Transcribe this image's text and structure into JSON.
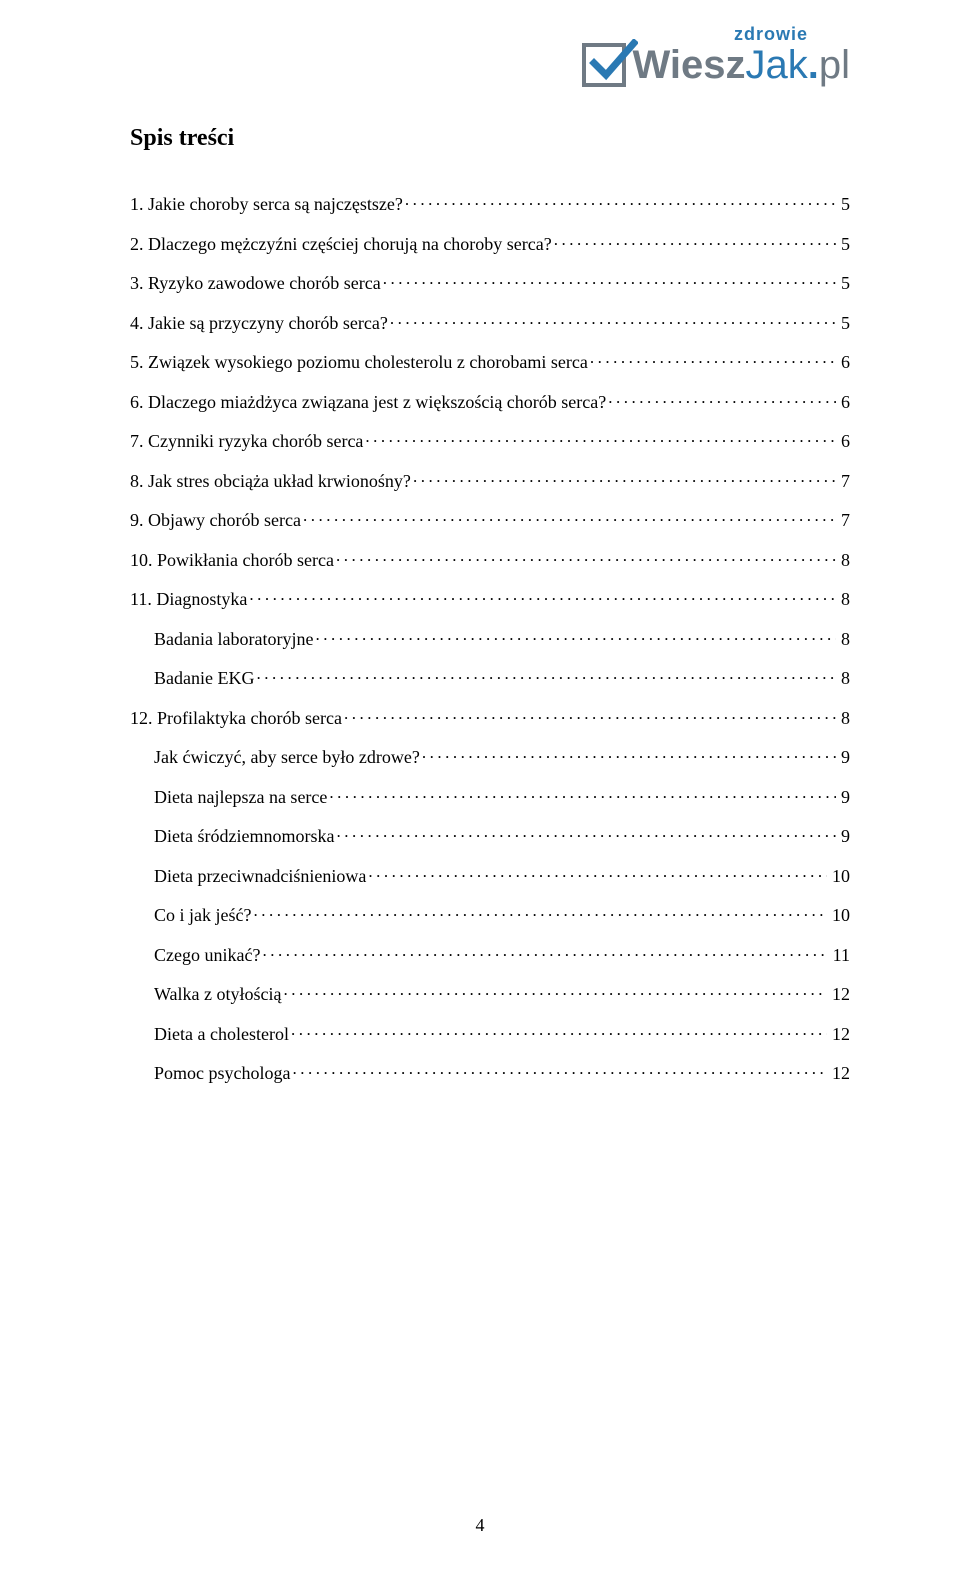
{
  "logo": {
    "top_text": "zdrowie",
    "top_color": "#2a79b3",
    "check_border_color": "#6f7a84",
    "check_mark_color": "#2a79b3",
    "word_wiesz": "Wiesz",
    "word_wiesz_color": "#6f7a84",
    "word_jak": "Jak",
    "word_jak_color": "#2a79b3",
    "word_dot": ".",
    "word_pl": "pl",
    "word_pl_color": "#6f7a84"
  },
  "heading": "Spis treści",
  "toc": [
    {
      "label": "1. Jakie choroby serca są najczęstsze?",
      "page": "5",
      "indent": false
    },
    {
      "label": "2. Dlaczego mężczyźni częściej chorują na choroby serca?",
      "page": "5",
      "indent": false
    },
    {
      "label": "3. Ryzyko zawodowe chorób serca",
      "page": "5",
      "indent": false
    },
    {
      "label": "4. Jakie są przyczyny chorób serca?",
      "page": "5",
      "indent": false
    },
    {
      "label": "5. Związek wysokiego poziomu cholesterolu z chorobami serca",
      "page": "6",
      "indent": false
    },
    {
      "label": "6. Dlaczego miażdżyca związana jest z większością chorób serca?",
      "page": "6",
      "indent": false
    },
    {
      "label": "7. Czynniki ryzyka chorób serca",
      "page": "6",
      "indent": false
    },
    {
      "label": "8. Jak stres obciąża układ krwionośny?",
      "page": "7",
      "indent": false
    },
    {
      "label": "9. Objawy chorób serca",
      "page": "7",
      "indent": false
    },
    {
      "label": "10. Powikłania chorób serca",
      "page": "8",
      "indent": false
    },
    {
      "label": "11. Diagnostyka",
      "page": "8",
      "indent": false
    },
    {
      "label": "Badania laboratoryjne",
      "page": "8",
      "indent": true
    },
    {
      "label": "Badanie EKG",
      "page": "8",
      "indent": true
    },
    {
      "label": "12. Profilaktyka chorób serca",
      "page": "8",
      "indent": false
    },
    {
      "label": "Jak ćwiczyć, aby serce było zdrowe?",
      "page": "9",
      "indent": true
    },
    {
      "label": "Dieta najlepsza na serce",
      "page": "9",
      "indent": true
    },
    {
      "label": "Dieta śródziemnomorska",
      "page": "9",
      "indent": true
    },
    {
      "label": "Dieta przeciwnadciśnieniowa",
      "page": "10",
      "indent": true
    },
    {
      "label": "Co i jak jeść?",
      "page": "10",
      "indent": true
    },
    {
      "label": "Czego unikać?",
      "page": "11",
      "indent": true
    },
    {
      "label": "Walka z otyłością",
      "page": "12",
      "indent": true
    },
    {
      "label": "Dieta a cholesterol",
      "page": "12",
      "indent": true
    },
    {
      "label": "Pomoc psychologa",
      "page": "12",
      "indent": true
    }
  ],
  "footer_page_number": "4",
  "colors": {
    "text": "#000000",
    "background": "#ffffff"
  }
}
